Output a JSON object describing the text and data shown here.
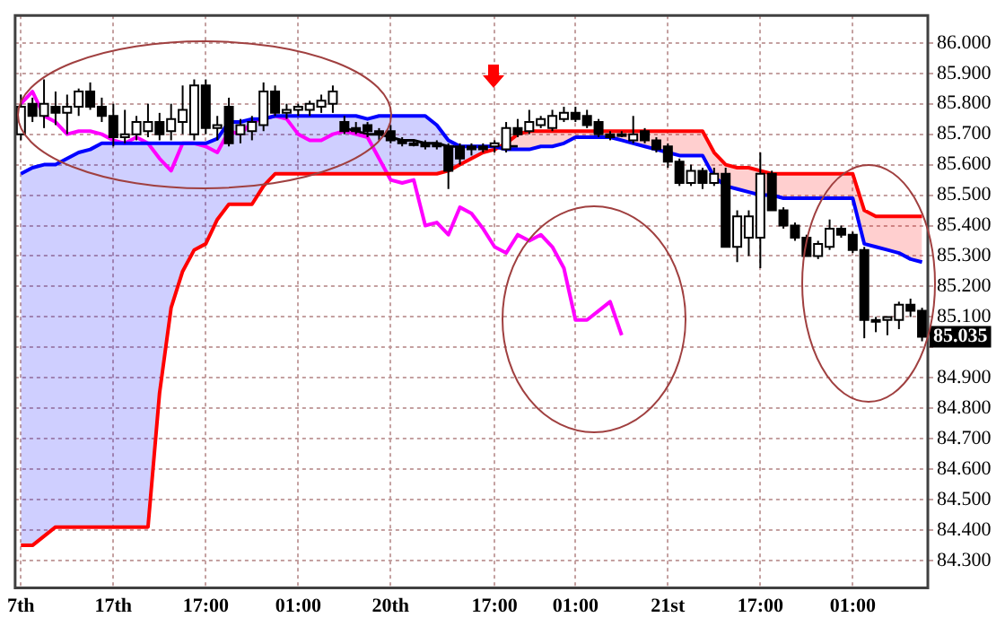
{
  "chart_data": {
    "type": "candlestick",
    "categories": [
      "7th",
      null,
      null,
      null,
      null,
      null,
      null,
      null,
      "17th",
      null,
      null,
      null,
      null,
      null,
      null,
      null,
      "17:00",
      null,
      null,
      null,
      null,
      null,
      null,
      null,
      "01:00",
      null,
      null,
      null,
      null,
      null,
      null,
      null,
      "20th",
      null,
      null,
      null,
      null,
      null,
      null,
      null,
      null,
      "17:00",
      null,
      null,
      null,
      null,
      null,
      null,
      "01:00",
      null,
      null,
      null,
      null,
      null,
      null,
      null,
      "21st",
      null,
      null,
      null,
      null,
      null,
      null,
      null,
      "17:00",
      null,
      null,
      null,
      null,
      null,
      null,
      null,
      "01:00",
      null,
      null,
      null,
      null,
      null,
      null
    ],
    "ohlc": [
      [
        85.7,
        85.83,
        85.68,
        85.79
      ],
      [
        85.8,
        85.82,
        85.74,
        85.76
      ],
      [
        85.76,
        85.88,
        85.72,
        85.8
      ],
      [
        85.79,
        85.84,
        85.73,
        85.77
      ],
      [
        85.77,
        85.83,
        85.7,
        85.79
      ],
      [
        85.79,
        85.85,
        85.76,
        85.84
      ],
      [
        85.84,
        85.87,
        85.78,
        85.79
      ],
      [
        85.79,
        85.82,
        85.74,
        85.76
      ],
      [
        85.76,
        85.8,
        85.66,
        85.69
      ],
      [
        85.69,
        85.78,
        85.67,
        85.7
      ],
      [
        85.7,
        85.76,
        85.68,
        85.74
      ],
      [
        85.71,
        85.8,
        85.69,
        85.74
      ],
      [
        85.74,
        85.77,
        85.68,
        85.7
      ],
      [
        85.71,
        85.8,
        85.68,
        85.75
      ],
      [
        85.74,
        85.86,
        85.7,
        85.78
      ],
      [
        85.7,
        85.88,
        85.68,
        85.86
      ],
      [
        85.86,
        85.88,
        85.7,
        85.72
      ],
      [
        85.72,
        85.76,
        85.68,
        85.73
      ],
      [
        85.79,
        85.82,
        85.66,
        85.67
      ],
      [
        85.7,
        85.75,
        85.67,
        85.73
      ],
      [
        85.71,
        85.76,
        85.68,
        85.74
      ],
      [
        85.73,
        85.87,
        85.71,
        85.84
      ],
      [
        85.84,
        85.86,
        85.76,
        85.77
      ],
      [
        85.77,
        85.8,
        85.75,
        85.78
      ],
      [
        85.78,
        85.8,
        85.76,
        85.79
      ],
      [
        85.78,
        85.81,
        85.76,
        85.8
      ],
      [
        85.79,
        85.83,
        85.77,
        85.81
      ],
      [
        85.8,
        85.86,
        85.77,
        85.84
      ],
      [
        85.74,
        85.76,
        85.7,
        85.71
      ],
      [
        85.72,
        85.74,
        85.7,
        85.71
      ],
      [
        85.73,
        85.74,
        85.69,
        85.71
      ],
      [
        85.71,
        85.72,
        85.68,
        85.7
      ],
      [
        85.71,
        85.73,
        85.67,
        85.68
      ],
      [
        85.68,
        85.69,
        85.66,
        85.67
      ],
      [
        85.67,
        85.68,
        85.66,
        85.67
      ],
      [
        85.67,
        85.68,
        85.65,
        85.66
      ],
      [
        85.67,
        85.68,
        85.65,
        85.66
      ],
      [
        85.66,
        85.67,
        85.52,
        85.58
      ],
      [
        85.66,
        85.67,
        85.6,
        85.62
      ],
      [
        85.66,
        85.67,
        85.63,
        85.65
      ],
      [
        85.66,
        85.67,
        85.64,
        85.65
      ],
      [
        85.66,
        85.68,
        85.64,
        85.67
      ],
      [
        85.65,
        85.74,
        85.64,
        85.72
      ],
      [
        85.72,
        85.75,
        85.69,
        85.7
      ],
      [
        85.71,
        85.78,
        85.7,
        85.74
      ],
      [
        85.73,
        85.76,
        85.72,
        85.75
      ],
      [
        85.72,
        85.78,
        85.71,
        85.76
      ],
      [
        85.75,
        85.79,
        85.74,
        85.77
      ],
      [
        85.77,
        85.79,
        85.74,
        85.75
      ],
      [
        85.76,
        85.78,
        85.72,
        85.73
      ],
      [
        85.74,
        85.75,
        85.69,
        85.7
      ],
      [
        85.7,
        85.71,
        85.68,
        85.69
      ],
      [
        85.7,
        85.71,
        85.69,
        85.7
      ],
      [
        85.68,
        85.76,
        85.67,
        85.7
      ],
      [
        85.71,
        85.72,
        85.67,
        85.68
      ],
      [
        85.68,
        85.69,
        85.64,
        85.65
      ],
      [
        85.66,
        85.67,
        85.59,
        85.61
      ],
      [
        85.61,
        85.62,
        85.53,
        85.54
      ],
      [
        85.54,
        85.6,
        85.53,
        85.58
      ],
      [
        85.58,
        85.59,
        85.52,
        85.54
      ],
      [
        85.54,
        85.59,
        85.53,
        85.57
      ],
      [
        85.57,
        85.59,
        85.33,
        85.33
      ],
      [
        85.33,
        85.45,
        85.28,
        85.43
      ],
      [
        85.36,
        85.45,
        85.3,
        85.43
      ],
      [
        85.36,
        85.64,
        85.26,
        85.57
      ],
      [
        85.57,
        85.58,
        85.45,
        85.45
      ],
      [
        85.45,
        85.46,
        85.39,
        85.4
      ],
      [
        85.4,
        85.41,
        85.35,
        85.36
      ],
      [
        85.36,
        85.37,
        85.3,
        85.3
      ],
      [
        85.3,
        85.35,
        85.29,
        85.34
      ],
      [
        85.33,
        85.42,
        85.32,
        85.39
      ],
      [
        85.39,
        85.4,
        85.36,
        85.37
      ],
      [
        85.37,
        85.38,
        85.31,
        85.32
      ],
      [
        85.32,
        85.33,
        85.03,
        85.09
      ],
      [
        85.09,
        85.1,
        85.05,
        85.09
      ],
      [
        85.09,
        85.1,
        85.04,
        85.1
      ],
      [
        85.09,
        85.15,
        85.06,
        85.14
      ],
      [
        85.14,
        85.16,
        85.1,
        85.12
      ],
      [
        85.12,
        85.13,
        85.02,
        85.035
      ]
    ],
    "series": [
      {
        "type": "line",
        "color": "#0000ff",
        "lower": [
          84.35,
          84.35,
          84.38,
          84.41,
          84.41,
          84.41,
          84.41,
          84.41,
          84.41,
          84.41,
          84.41,
          84.41,
          84.85,
          85.13,
          85.25,
          85.32,
          85.34,
          85.42,
          85.47,
          85.47,
          85.47,
          85.53,
          85.57,
          85.57,
          85.57,
          85.57,
          85.57,
          85.57,
          85.57,
          85.57,
          85.57,
          85.57,
          85.57,
          85.57,
          85.57,
          85.57,
          85.57,
          85.58,
          85.6,
          85.62,
          85.64,
          null,
          null,
          null,
          null,
          null,
          null,
          null,
          null,
          null,
          null,
          null,
          null,
          null,
          null,
          null,
          null,
          null,
          null,
          null,
          null,
          null,
          null,
          null,
          null,
          null,
          null,
          null,
          null,
          null,
          null,
          null,
          null,
          null,
          null,
          null,
          null,
          null,
          null
        ],
        "upper": [
          85.57,
          85.59,
          85.6,
          85.6,
          85.62,
          85.64,
          85.65,
          85.67,
          85.67,
          85.67,
          85.67,
          85.67,
          85.67,
          85.67,
          85.67,
          85.67,
          85.67,
          85.685,
          85.74,
          85.74,
          85.75,
          85.75,
          85.76,
          85.76,
          85.76,
          85.76,
          85.76,
          85.76,
          85.76,
          85.76,
          85.75,
          85.76,
          85.76,
          85.76,
          85.76,
          85.76,
          85.73,
          85.68,
          85.66,
          85.66,
          85.66,
          null,
          null,
          null,
          null,
          null,
          null,
          null,
          null,
          null,
          null,
          null,
          null,
          null,
          null,
          null,
          null,
          null,
          null,
          null,
          null,
          null,
          null,
          null,
          null,
          null,
          null,
          null,
          null,
          null,
          null,
          null,
          null,
          null,
          null,
          null,
          null,
          null,
          null
        ],
        "values": [
          85.57,
          85.59,
          85.6,
          85.6,
          85.62,
          85.64,
          85.65,
          85.67,
          85.67,
          85.67,
          85.67,
          85.67,
          85.67,
          85.67,
          85.67,
          85.67,
          85.67,
          85.685,
          85.74,
          85.74,
          85.75,
          85.75,
          85.76,
          85.76,
          85.76,
          85.76,
          85.76,
          85.76,
          85.76,
          85.76,
          85.75,
          85.76,
          85.76,
          85.76,
          85.76,
          85.76,
          85.73,
          85.68,
          85.66,
          85.66,
          85.66,
          85.66,
          85.65,
          85.65,
          85.65,
          85.66,
          85.66,
          85.67,
          85.69,
          85.69,
          85.69,
          85.69,
          85.68,
          85.67,
          85.66,
          85.65,
          85.64,
          85.63,
          85.63,
          85.63,
          85.56,
          85.53,
          85.52,
          85.51,
          85.5,
          85.5,
          85.49,
          85.49,
          85.49,
          85.49,
          85.49,
          85.49,
          85.49,
          85.34,
          85.33,
          85.32,
          85.31,
          85.29,
          85.28
        ]
      },
      {
        "type": "line",
        "color": "#ff0000",
        "lower": [
          null,
          null,
          null,
          null,
          null,
          null,
          null,
          null,
          null,
          null,
          null,
          null,
          null,
          null,
          null,
          null,
          null,
          null,
          null,
          null,
          null,
          null,
          null,
          null,
          null,
          null,
          null,
          null,
          null,
          null,
          null,
          null,
          null,
          null,
          null,
          null,
          null,
          null,
          null,
          null,
          85.64,
          85.65,
          85.65,
          85.65,
          85.65,
          85.66,
          85.66,
          85.67,
          85.69,
          85.69,
          85.69,
          85.69,
          85.68,
          85.67,
          85.66,
          85.65,
          85.64,
          85.63,
          85.63,
          85.63,
          85.56,
          85.53,
          85.52,
          85.51,
          85.5,
          85.5,
          85.49,
          85.49,
          85.49,
          85.49,
          85.49,
          85.49,
          85.49,
          85.34,
          85.33,
          85.32,
          85.31,
          85.29,
          85.28
        ],
        "upper": [
          null,
          null,
          null,
          null,
          null,
          null,
          null,
          null,
          null,
          null,
          null,
          null,
          null,
          null,
          null,
          null,
          null,
          null,
          null,
          null,
          null,
          null,
          null,
          null,
          null,
          null,
          null,
          null,
          null,
          null,
          null,
          null,
          null,
          null,
          null,
          null,
          null,
          null,
          null,
          null,
          85.64,
          85.65,
          85.67,
          85.7,
          85.71,
          85.71,
          85.71,
          85.71,
          85.71,
          85.71,
          85.71,
          85.71,
          85.71,
          85.71,
          85.71,
          85.71,
          85.71,
          85.71,
          85.71,
          85.71,
          85.64,
          85.6,
          85.59,
          85.59,
          85.58,
          85.57,
          85.57,
          85.57,
          85.57,
          85.57,
          85.57,
          85.57,
          85.57,
          85.45,
          85.43,
          85.43,
          85.43,
          85.43,
          85.43
        ],
        "values": [
          84.35,
          84.35,
          84.38,
          84.41,
          84.41,
          84.41,
          84.41,
          84.41,
          84.41,
          84.41,
          84.41,
          84.41,
          84.85,
          85.13,
          85.25,
          85.32,
          85.34,
          85.42,
          85.47,
          85.47,
          85.47,
          85.53,
          85.57,
          85.57,
          85.57,
          85.57,
          85.57,
          85.57,
          85.57,
          85.57,
          85.57,
          85.57,
          85.57,
          85.57,
          85.57,
          85.57,
          85.57,
          85.58,
          85.6,
          85.62,
          85.64,
          85.65,
          85.67,
          85.7,
          85.71,
          85.71,
          85.71,
          85.71,
          85.71,
          85.71,
          85.71,
          85.71,
          85.71,
          85.71,
          85.71,
          85.71,
          85.71,
          85.71,
          85.71,
          85.71,
          85.64,
          85.6,
          85.59,
          85.59,
          85.58,
          85.57,
          85.57,
          85.57,
          85.57,
          85.57,
          85.57,
          85.57,
          85.57,
          85.45,
          85.43,
          85.43,
          85.43,
          85.43,
          85.43
        ]
      },
      {
        "type": "line",
        "color": "#ff00ff",
        "values": [
          85.8,
          85.84,
          85.76,
          85.74,
          85.7,
          85.71,
          85.71,
          85.7,
          85.68,
          85.67,
          85.69,
          85.67,
          85.62,
          85.58,
          85.67,
          85.67,
          85.66,
          85.64,
          85.71,
          85.7,
          85.74,
          85.75,
          85.76,
          85.75,
          85.7,
          85.68,
          85.68,
          85.7,
          85.71,
          85.7,
          85.69,
          85.62,
          85.55,
          85.54,
          85.55,
          85.4,
          85.41,
          85.37,
          85.46,
          85.44,
          85.39,
          85.33,
          85.31,
          85.37,
          85.35,
          85.37,
          85.33,
          85.26,
          85.09,
          85.09,
          85.12,
          85.15,
          85.04,
          null,
          null,
          null,
          null,
          null,
          null,
          null,
          null,
          null,
          null,
          null,
          null,
          null,
          null,
          null,
          null,
          null,
          null,
          null,
          null,
          null,
          null,
          null,
          null,
          null,
          null
        ]
      },
      {
        "type": "line",
        "color": "#000000",
        "values": [
          null,
          null,
          null,
          null,
          null,
          null,
          null,
          null,
          null,
          null,
          null,
          null,
          null,
          null,
          null,
          null,
          null,
          null,
          null,
          null,
          null,
          null,
          null,
          null,
          null,
          null,
          null,
          null,
          85.72,
          85.71,
          85.7,
          85.7,
          85.69,
          85.68,
          85.68,
          85.67,
          85.67,
          85.66,
          85.66,
          85.66,
          85.66,
          85.66,
          85.66,
          85.66,
          null,
          null,
          null,
          null,
          null,
          null,
          null,
          null,
          null,
          null,
          null,
          null,
          null,
          null,
          null,
          null,
          null,
          null,
          null,
          null,
          null,
          null,
          null,
          null,
          null,
          null,
          null,
          null,
          null,
          null,
          null,
          null,
          null,
          null,
          null
        ]
      }
    ],
    "ylim": [
      84.21,
      86.09
    ],
    "yticks": [
      {
        "value": 84.3,
        "label": "84.300"
      },
      {
        "value": 84.4,
        "label": "84.400"
      },
      {
        "value": 84.5,
        "label": "84.500"
      },
      {
        "value": 84.6,
        "label": "84.600"
      },
      {
        "value": 84.7,
        "label": "84.700"
      },
      {
        "value": 84.8,
        "label": "84.800"
      },
      {
        "value": 84.9,
        "label": "84.900"
      },
      {
        "value": 85.0,
        "label": null
      },
      {
        "value": 85.1,
        "label": "85.100"
      },
      {
        "value": 85.2,
        "label": "85.200"
      },
      {
        "value": 85.3,
        "label": "85.300"
      },
      {
        "value": 85.4,
        "label": "85.400"
      },
      {
        "value": 85.5,
        "label": "85.500"
      },
      {
        "value": 85.6,
        "label": "85.600"
      },
      {
        "value": 85.7,
        "label": "85.700"
      },
      {
        "value": 85.8,
        "label": "85.800"
      },
      {
        "value": 85.9,
        "label": "85.900"
      },
      {
        "value": 86.0,
        "label": "86.000"
      }
    ],
    "grid": true,
    "annotations": [
      {
        "text": "85.035",
        "y": 85.035
      }
    ]
  }
}
